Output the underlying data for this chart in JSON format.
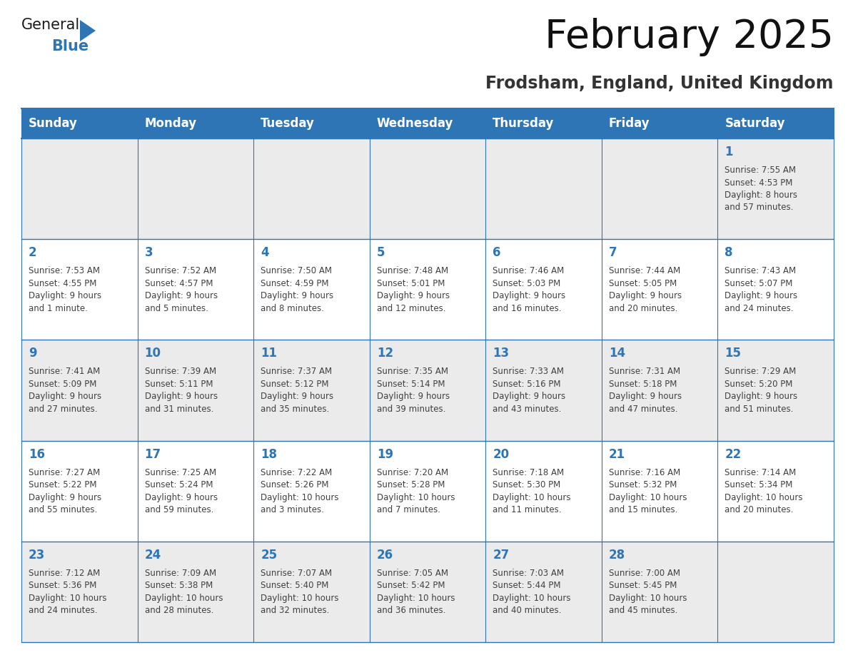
{
  "title": "February 2025",
  "subtitle": "Frodsham, England, United Kingdom",
  "header_bg": "#2e75b6",
  "header_text_color": "#ffffff",
  "cell_bg_light": "#ebebeb",
  "cell_bg_white": "#ffffff",
  "day_number_color": "#2e75b6",
  "info_text_color": "#404040",
  "border_color": "#2e75b6",
  "days_of_week": [
    "Sunday",
    "Monday",
    "Tuesday",
    "Wednesday",
    "Thursday",
    "Friday",
    "Saturday"
  ],
  "weeks": [
    [
      {
        "day": null,
        "info": ""
      },
      {
        "day": null,
        "info": ""
      },
      {
        "day": null,
        "info": ""
      },
      {
        "day": null,
        "info": ""
      },
      {
        "day": null,
        "info": ""
      },
      {
        "day": null,
        "info": ""
      },
      {
        "day": 1,
        "info": "Sunrise: 7:55 AM\nSunset: 4:53 PM\nDaylight: 8 hours\nand 57 minutes."
      }
    ],
    [
      {
        "day": 2,
        "info": "Sunrise: 7:53 AM\nSunset: 4:55 PM\nDaylight: 9 hours\nand 1 minute."
      },
      {
        "day": 3,
        "info": "Sunrise: 7:52 AM\nSunset: 4:57 PM\nDaylight: 9 hours\nand 5 minutes."
      },
      {
        "day": 4,
        "info": "Sunrise: 7:50 AM\nSunset: 4:59 PM\nDaylight: 9 hours\nand 8 minutes."
      },
      {
        "day": 5,
        "info": "Sunrise: 7:48 AM\nSunset: 5:01 PM\nDaylight: 9 hours\nand 12 minutes."
      },
      {
        "day": 6,
        "info": "Sunrise: 7:46 AM\nSunset: 5:03 PM\nDaylight: 9 hours\nand 16 minutes."
      },
      {
        "day": 7,
        "info": "Sunrise: 7:44 AM\nSunset: 5:05 PM\nDaylight: 9 hours\nand 20 minutes."
      },
      {
        "day": 8,
        "info": "Sunrise: 7:43 AM\nSunset: 5:07 PM\nDaylight: 9 hours\nand 24 minutes."
      }
    ],
    [
      {
        "day": 9,
        "info": "Sunrise: 7:41 AM\nSunset: 5:09 PM\nDaylight: 9 hours\nand 27 minutes."
      },
      {
        "day": 10,
        "info": "Sunrise: 7:39 AM\nSunset: 5:11 PM\nDaylight: 9 hours\nand 31 minutes."
      },
      {
        "day": 11,
        "info": "Sunrise: 7:37 AM\nSunset: 5:12 PM\nDaylight: 9 hours\nand 35 minutes."
      },
      {
        "day": 12,
        "info": "Sunrise: 7:35 AM\nSunset: 5:14 PM\nDaylight: 9 hours\nand 39 minutes."
      },
      {
        "day": 13,
        "info": "Sunrise: 7:33 AM\nSunset: 5:16 PM\nDaylight: 9 hours\nand 43 minutes."
      },
      {
        "day": 14,
        "info": "Sunrise: 7:31 AM\nSunset: 5:18 PM\nDaylight: 9 hours\nand 47 minutes."
      },
      {
        "day": 15,
        "info": "Sunrise: 7:29 AM\nSunset: 5:20 PM\nDaylight: 9 hours\nand 51 minutes."
      }
    ],
    [
      {
        "day": 16,
        "info": "Sunrise: 7:27 AM\nSunset: 5:22 PM\nDaylight: 9 hours\nand 55 minutes."
      },
      {
        "day": 17,
        "info": "Sunrise: 7:25 AM\nSunset: 5:24 PM\nDaylight: 9 hours\nand 59 minutes."
      },
      {
        "day": 18,
        "info": "Sunrise: 7:22 AM\nSunset: 5:26 PM\nDaylight: 10 hours\nand 3 minutes."
      },
      {
        "day": 19,
        "info": "Sunrise: 7:20 AM\nSunset: 5:28 PM\nDaylight: 10 hours\nand 7 minutes."
      },
      {
        "day": 20,
        "info": "Sunrise: 7:18 AM\nSunset: 5:30 PM\nDaylight: 10 hours\nand 11 minutes."
      },
      {
        "day": 21,
        "info": "Sunrise: 7:16 AM\nSunset: 5:32 PM\nDaylight: 10 hours\nand 15 minutes."
      },
      {
        "day": 22,
        "info": "Sunrise: 7:14 AM\nSunset: 5:34 PM\nDaylight: 10 hours\nand 20 minutes."
      }
    ],
    [
      {
        "day": 23,
        "info": "Sunrise: 7:12 AM\nSunset: 5:36 PM\nDaylight: 10 hours\nand 24 minutes."
      },
      {
        "day": 24,
        "info": "Sunrise: 7:09 AM\nSunset: 5:38 PM\nDaylight: 10 hours\nand 28 minutes."
      },
      {
        "day": 25,
        "info": "Sunrise: 7:07 AM\nSunset: 5:40 PM\nDaylight: 10 hours\nand 32 minutes."
      },
      {
        "day": 26,
        "info": "Sunrise: 7:05 AM\nSunset: 5:42 PM\nDaylight: 10 hours\nand 36 minutes."
      },
      {
        "day": 27,
        "info": "Sunrise: 7:03 AM\nSunset: 5:44 PM\nDaylight: 10 hours\nand 40 minutes."
      },
      {
        "day": 28,
        "info": "Sunrise: 7:00 AM\nSunset: 5:45 PM\nDaylight: 10 hours\nand 45 minutes."
      },
      {
        "day": null,
        "info": ""
      }
    ]
  ],
  "logo_text1": "General",
  "logo_text2": "Blue",
  "logo_color1": "#1a1a1a",
  "logo_color2": "#2e75b6",
  "logo_triangle_color": "#2e75b6",
  "title_fontsize": 40,
  "subtitle_fontsize": 17,
  "header_fontsize": 12,
  "day_num_fontsize": 12,
  "info_fontsize": 8.5
}
